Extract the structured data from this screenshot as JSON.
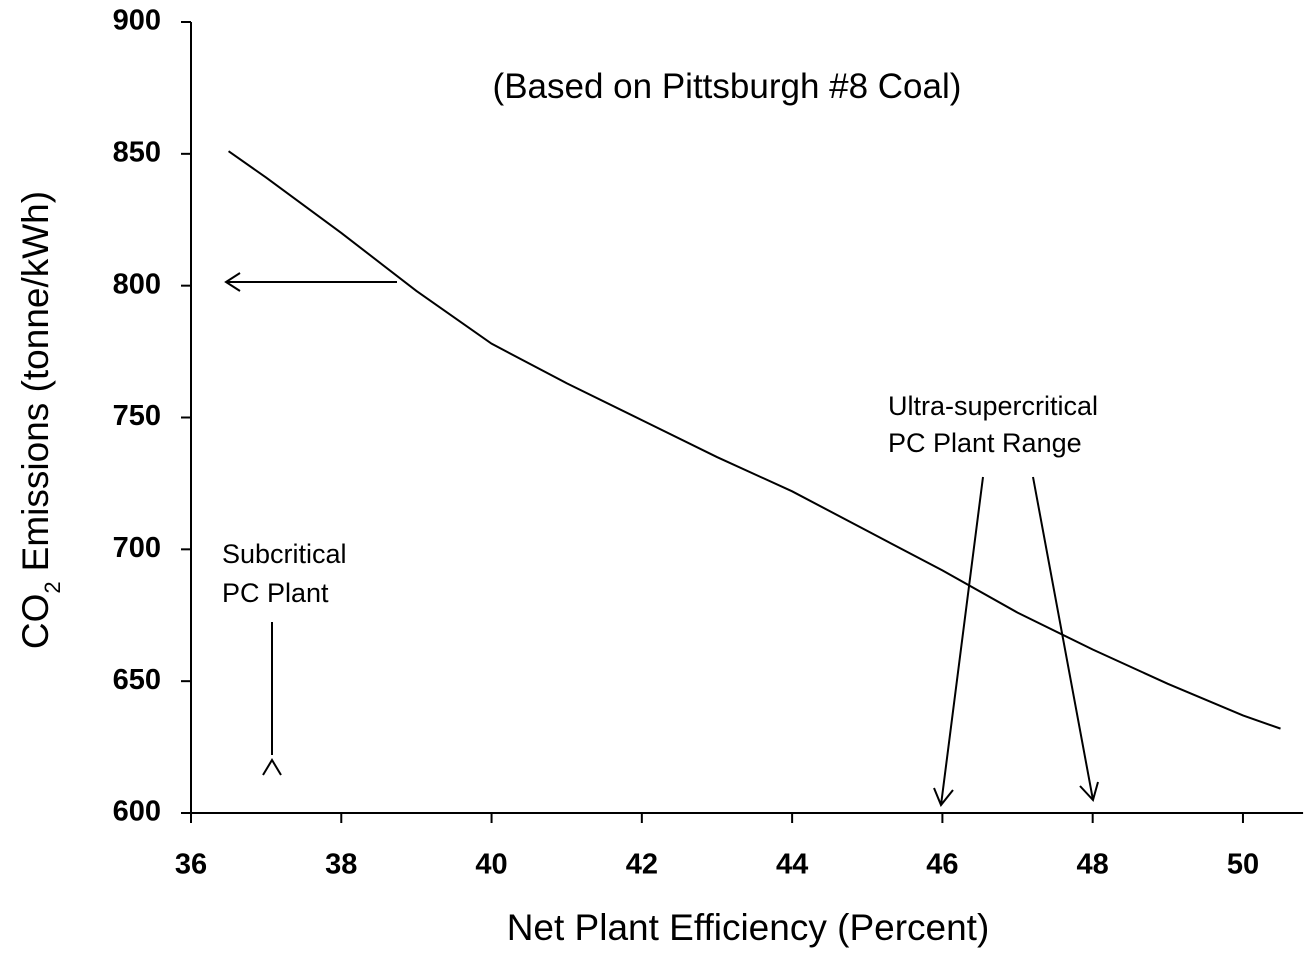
{
  "chart_data": {
    "type": "line",
    "title": "(Based on Pittsburgh #8 Coal)",
    "x_label": "Net Plant Efficiency (Percent)",
    "y_label": [
      "CO",
      "2",
      "Emissions (tonne/kWh)"
    ],
    "annotations": [
      [
        "Ultra-supercritical",
        "PC Plant Range"
      ],
      [
        "Subcritical",
        "PC Plant"
      ]
    ],
    "x": [
      36.5,
      37,
      38,
      39,
      40,
      41,
      42,
      43,
      44,
      45,
      46,
      47,
      48,
      49,
      50,
      50.5
    ],
    "series": [
      {
        "color": "#000000",
        "values": [
          851,
          841,
          820,
          798,
          778,
          763,
          749,
          735,
          722,
          707,
          692,
          676,
          662,
          649,
          637,
          632
        ]
      }
    ],
    "xlim": [
      36,
      50.8
    ],
    "ylim": [
      600,
      900
    ],
    "xticks": [
      36,
      38,
      40,
      42,
      44,
      46,
      48,
      50
    ],
    "yticks": [
      600,
      650,
      700,
      750,
      800,
      850,
      900
    ]
  }
}
